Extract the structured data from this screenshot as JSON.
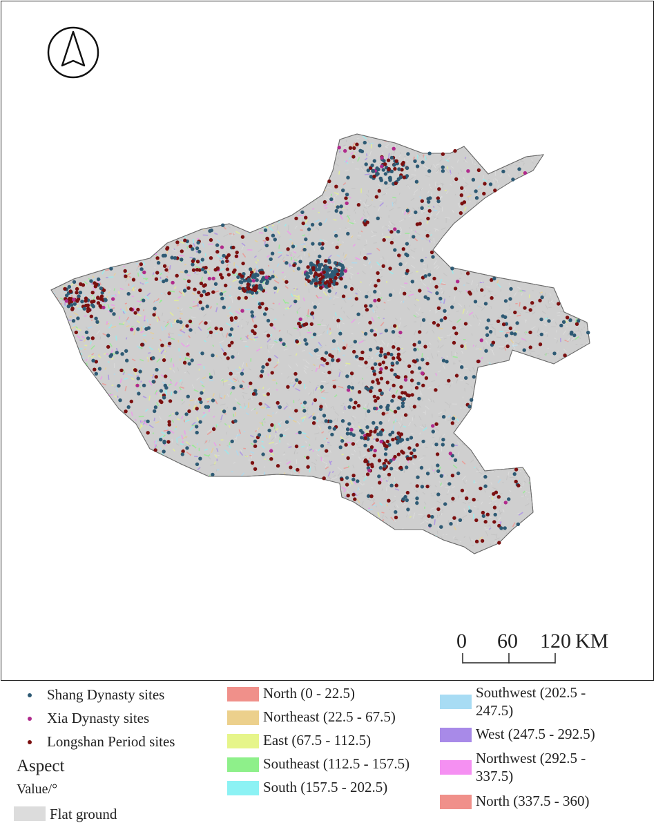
{
  "map": {
    "north_arrow": "north-arrow-icon",
    "base_color": "#cfcfcf",
    "scale_bar": {
      "labels": [
        "0",
        "60",
        "120"
      ],
      "unit": "KM"
    }
  },
  "legend": {
    "symbols": [
      {
        "label": "Shang Dynasty sites",
        "color": "#2e5a74"
      },
      {
        "label": "Xia Dynasty sites",
        "color": "#b02a8c"
      },
      {
        "label": "Longshan Period sites",
        "color": "#7b1010"
      }
    ],
    "aspect_title": "Aspect",
    "value_label": "Value/°",
    "flat_ground": {
      "label": "Flat ground",
      "color": "#dcdcdc"
    },
    "classes_col1": [
      {
        "label": "North (0 - 22.5)",
        "color": "#f0908a"
      },
      {
        "label": "Northeast (22.5 - 67.5)",
        "color": "#ecd08c"
      },
      {
        "label": "East (67.5 - 112.5)",
        "color": "#e6f58a"
      },
      {
        "label": "Southeast (112.5 - 157.5)",
        "color": "#8ef08a"
      },
      {
        "label": "South (157.5 - 202.5)",
        "color": "#8cf2f4"
      }
    ],
    "classes_col2": [
      {
        "label_1": "Southwest (202.5 -",
        "label_2": "247.5)",
        "color": "#a8dcf4"
      },
      {
        "label_1": "West (247.5 - 292.5)",
        "label_2": "",
        "color": "#a88ae8"
      },
      {
        "label_1": "Northwest (292.5 -",
        "label_2": "337.5)",
        "color": "#f590f2"
      },
      {
        "label_1": "North (337.5 - 360)",
        "label_2": "",
        "color": "#f0908a"
      }
    ]
  }
}
